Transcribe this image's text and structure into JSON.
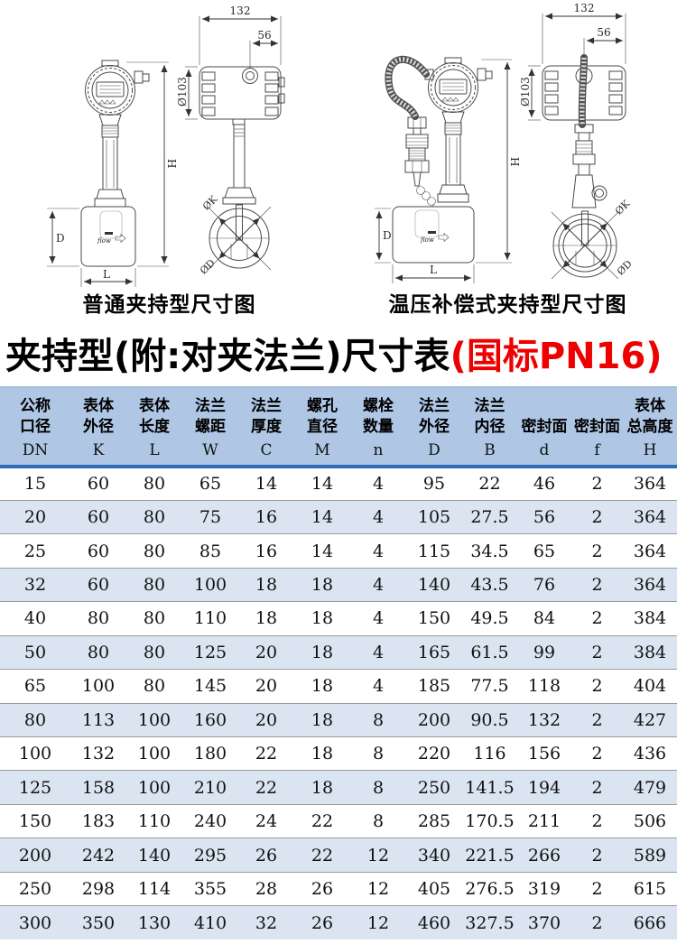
{
  "diagrams": {
    "left_caption": "普通夹持型尺寸图",
    "right_caption": "温压补偿式夹持型尺寸图",
    "dims": {
      "width_132": "132",
      "width_56": "56",
      "dia_103": "Ø103",
      "height_h": "H",
      "body_d": "D",
      "body_l": "L",
      "dia_k": "ØK",
      "dia_d": "ØD",
      "flow_label": "flow"
    }
  },
  "title": {
    "black": "夹持型(附:对夹法兰)尺寸表",
    "red": "(国标PN16)"
  },
  "table": {
    "columns": [
      {
        "lines": [
          "公称",
          "口径"
        ],
        "letter": "DN"
      },
      {
        "lines": [
          "表体",
          "外径"
        ],
        "letter": "K"
      },
      {
        "lines": [
          "表体",
          "长度"
        ],
        "letter": "L"
      },
      {
        "lines": [
          "法兰",
          "螺距"
        ],
        "letter": "W"
      },
      {
        "lines": [
          "法兰",
          "厚度"
        ],
        "letter": "C"
      },
      {
        "lines": [
          "螺孔",
          "直径"
        ],
        "letter": "M"
      },
      {
        "lines": [
          "螺栓",
          "数量"
        ],
        "letter": "n"
      },
      {
        "lines": [
          "法兰",
          "外径"
        ],
        "letter": "D"
      },
      {
        "lines": [
          "法兰",
          "内径"
        ],
        "letter": "B"
      },
      {
        "lines": [
          "密封面"
        ],
        "letter": "d"
      },
      {
        "lines": [
          "密封面"
        ],
        "letter": "f"
      },
      {
        "lines": [
          "表体",
          "总高度"
        ],
        "letter": "H"
      }
    ],
    "rows": [
      [
        "15",
        "60",
        "80",
        "65",
        "14",
        "14",
        "4",
        "95",
        "22",
        "46",
        "2",
        "364"
      ],
      [
        "20",
        "60",
        "80",
        "75",
        "16",
        "14",
        "4",
        "105",
        "27.5",
        "56",
        "2",
        "364"
      ],
      [
        "25",
        "60",
        "80",
        "85",
        "16",
        "14",
        "4",
        "115",
        "34.5",
        "65",
        "2",
        "364"
      ],
      [
        "32",
        "60",
        "80",
        "100",
        "18",
        "18",
        "4",
        "140",
        "43.5",
        "76",
        "2",
        "364"
      ],
      [
        "40",
        "80",
        "80",
        "110",
        "18",
        "18",
        "4",
        "150",
        "49.5",
        "84",
        "2",
        "384"
      ],
      [
        "50",
        "80",
        "80",
        "125",
        "20",
        "18",
        "4",
        "165",
        "61.5",
        "99",
        "2",
        "384"
      ],
      [
        "65",
        "100",
        "80",
        "145",
        "20",
        "18",
        "4",
        "185",
        "77.5",
        "118",
        "2",
        "404"
      ],
      [
        "80",
        "113",
        "100",
        "160",
        "20",
        "18",
        "8",
        "200",
        "90.5",
        "132",
        "2",
        "427"
      ],
      [
        "100",
        "132",
        "100",
        "180",
        "22",
        "18",
        "8",
        "220",
        "116",
        "156",
        "2",
        "436"
      ],
      [
        "125",
        "158",
        "100",
        "210",
        "22",
        "18",
        "8",
        "250",
        "141.5",
        "194",
        "2",
        "479"
      ],
      [
        "150",
        "183",
        "110",
        "240",
        "24",
        "22",
        "8",
        "285",
        "170.5",
        "211",
        "2",
        "506"
      ],
      [
        "200",
        "242",
        "140",
        "295",
        "26",
        "22",
        "12",
        "340",
        "221.5",
        "266",
        "2",
        "589"
      ],
      [
        "250",
        "298",
        "114",
        "355",
        "28",
        "26",
        "12",
        "405",
        "276.5",
        "319",
        "2",
        "615"
      ],
      [
        "300",
        "350",
        "130",
        "410",
        "32",
        "26",
        "12",
        "460",
        "327.5",
        "370",
        "2",
        "666"
      ]
    ]
  },
  "colors": {
    "header_bg": "#afc7e4",
    "stripe_row_bg": "#dbe5f1",
    "header_divider": "#2d6db8",
    "table_top_border": "#a3bedd",
    "row_separator": "#9b9b9b",
    "title_red": "#ee0000",
    "drawing_line": "#4a4a4a"
  }
}
